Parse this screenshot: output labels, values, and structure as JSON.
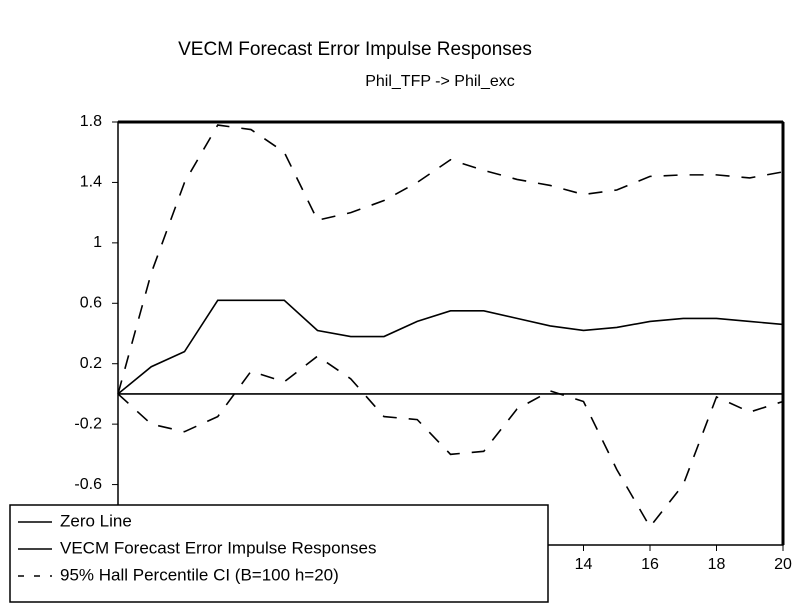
{
  "chart_data": {
    "type": "line",
    "title": "VECM Forecast Error Impulse Responses",
    "subtitle": "Phil_TFP -> Phil_exc",
    "x": [
      0,
      1,
      2,
      3,
      4,
      5,
      6,
      7,
      8,
      9,
      10,
      11,
      12,
      13,
      14,
      15,
      16,
      17,
      18,
      19,
      20
    ],
    "xlim": [
      0,
      20
    ],
    "xticks": [
      14,
      16,
      18,
      20
    ],
    "ylim": [
      -1.0,
      1.8
    ],
    "yticks": [
      1.8,
      1.4,
      1.0,
      0.6,
      0.2,
      -0.2,
      -0.6
    ],
    "legend": "lower left",
    "series": [
      {
        "name": "Zero Line",
        "color": "#000000",
        "dash": false,
        "values": [
          0,
          0,
          0,
          0,
          0,
          0,
          0,
          0,
          0,
          0,
          0,
          0,
          0,
          0,
          0,
          0,
          0,
          0,
          0,
          0,
          0
        ]
      },
      {
        "name": "VECM Forecast Error Impulse Responses",
        "color": "#000000",
        "dash": false,
        "values": [
          0,
          0.18,
          0.28,
          0.62,
          0.62,
          0.62,
          0.42,
          0.38,
          0.38,
          0.48,
          0.55,
          0.55,
          0.5,
          0.45,
          0.42,
          0.44,
          0.48,
          0.5,
          0.5,
          0.48,
          0.46
        ]
      },
      {
        "name": "95% Hall Percentile CI (B=100 h=20)",
        "color": "#000000",
        "dash": true,
        "values": [
          0,
          0.8,
          1.4,
          1.78,
          1.75,
          1.6,
          1.15,
          1.2,
          1.28,
          1.4,
          1.55,
          1.48,
          1.42,
          1.38,
          1.32,
          1.35,
          1.44,
          1.45,
          1.45,
          1.43,
          1.47
        ]
      },
      {
        "color": "#000000",
        "dash": true,
        "values": [
          0,
          -0.2,
          -0.25,
          -0.15,
          0.15,
          0.08,
          0.25,
          0.1,
          -0.15,
          -0.17,
          -0.4,
          -0.38,
          -0.1,
          0.02,
          -0.05,
          -0.5,
          -0.88,
          -0.6,
          -0.02,
          -0.12,
          -0.05
        ]
      }
    ]
  }
}
